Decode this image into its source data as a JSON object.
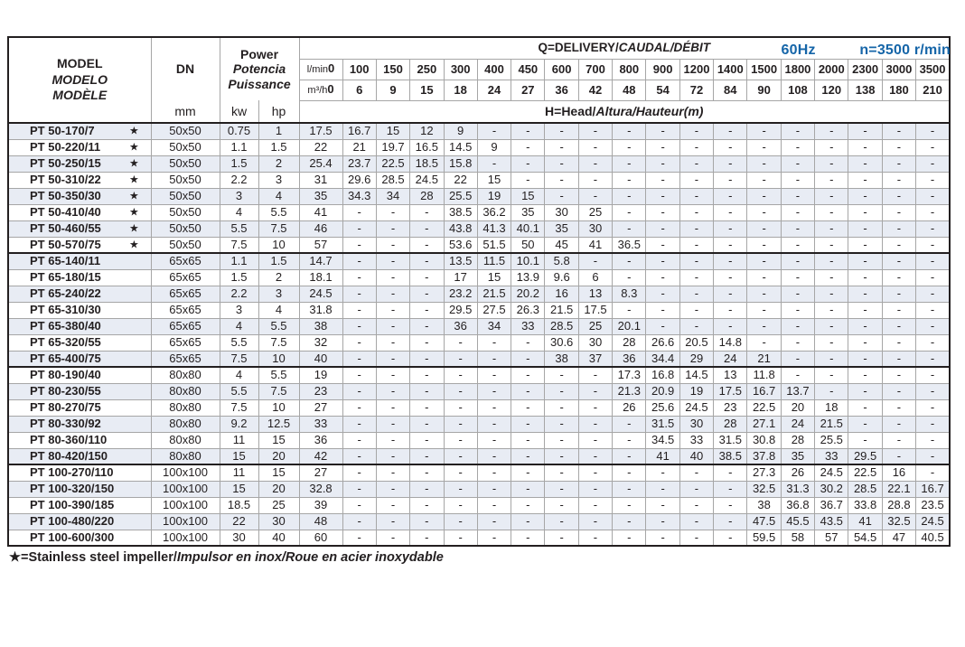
{
  "page": {
    "frequency": "60Hz",
    "speed": "n=3500 r/min",
    "footnote_star": "★",
    "footnote_plain": "=Stainless steel impeller/",
    "footnote_italic": "Impulsor en inox/Roue en acier inoxydable"
  },
  "colors": {
    "accent_blue": "#1565a8",
    "row_stripe": "#e8ecf4",
    "grid_line": "#a6a6a6",
    "heavy_line": "#231f20"
  },
  "table": {
    "headers": {
      "model": [
        "MODEL",
        "MODELO",
        "MODÈLE"
      ],
      "dn": "DN",
      "dn_unit": "mm",
      "power": [
        "Power",
        "Potencia",
        "Puissance"
      ],
      "kw": "kw",
      "hp": "hp",
      "q_title_plain": "Q=DELIVERY/",
      "q_title_italic": "CAUDAL/DÉBIT",
      "lmin_label": "l/min",
      "m3h_label": "m³/h",
      "lmin_values": [
        "0",
        "100",
        "150",
        "250",
        "300",
        "400",
        "450",
        "600",
        "700",
        "800",
        "900",
        "1200",
        "1400",
        "1500",
        "1800",
        "2000",
        "2300",
        "3000",
        "3500"
      ],
      "m3h_values": [
        "0",
        "6",
        "9",
        "15",
        "18",
        "24",
        "27",
        "36",
        "42",
        "48",
        "54",
        "72",
        "84",
        "90",
        "108",
        "120",
        "138",
        "180",
        "210"
      ],
      "head_title_plain": "H=Head/",
      "head_title_italic": "Altura/Hauteur(m)"
    },
    "rows": [
      {
        "model": "PT 50-170/7",
        "star": true,
        "dn": "50x50",
        "kw": "0.75",
        "hp": "1",
        "head": [
          "17.5",
          "16.7",
          "15",
          "12",
          "9",
          "-",
          "-",
          "-",
          "-",
          "-",
          "-",
          "-",
          "-",
          "-",
          "-",
          "-",
          "-",
          "-",
          "-"
        ]
      },
      {
        "model": "PT 50-220/11",
        "star": true,
        "dn": "50x50",
        "kw": "1.1",
        "hp": "1.5",
        "head": [
          "22",
          "21",
          "19.7",
          "16.5",
          "14.5",
          "9",
          "-",
          "-",
          "-",
          "-",
          "-",
          "-",
          "-",
          "-",
          "-",
          "-",
          "-",
          "-",
          "-"
        ]
      },
      {
        "model": "PT 50-250/15",
        "star": true,
        "dn": "50x50",
        "kw": "1.5",
        "hp": "2",
        "head": [
          "25.4",
          "23.7",
          "22.5",
          "18.5",
          "15.8",
          "-",
          "-",
          "-",
          "-",
          "-",
          "-",
          "-",
          "-",
          "-",
          "-",
          "-",
          "-",
          "-",
          "-"
        ]
      },
      {
        "model": "PT 50-310/22",
        "star": true,
        "dn": "50x50",
        "kw": "2.2",
        "hp": "3",
        "head": [
          "31",
          "29.6",
          "28.5",
          "24.5",
          "22",
          "15",
          "-",
          "-",
          "-",
          "-",
          "-",
          "-",
          "-",
          "-",
          "-",
          "-",
          "-",
          "-",
          "-"
        ]
      },
      {
        "model": "PT 50-350/30",
        "star": true,
        "dn": "50x50",
        "kw": "3",
        "hp": "4",
        "head": [
          "35",
          "34.3",
          "34",
          "28",
          "25.5",
          "19",
          "15",
          "-",
          "-",
          "-",
          "-",
          "-",
          "-",
          "-",
          "-",
          "-",
          "-",
          "-",
          "-"
        ]
      },
      {
        "model": "PT 50-410/40",
        "star": true,
        "dn": "50x50",
        "kw": "4",
        "hp": "5.5",
        "head": [
          "41",
          "-",
          "-",
          "-",
          "38.5",
          "36.2",
          "35",
          "30",
          "25",
          "-",
          "-",
          "-",
          "-",
          "-",
          "-",
          "-",
          "-",
          "-",
          "-"
        ]
      },
      {
        "model": "PT 50-460/55",
        "star": true,
        "dn": "50x50",
        "kw": "5.5",
        "hp": "7.5",
        "head": [
          "46",
          "-",
          "-",
          "-",
          "43.8",
          "41.3",
          "40.1",
          "35",
          "30",
          "-",
          "-",
          "-",
          "-",
          "-",
          "-",
          "-",
          "-",
          "-",
          "-"
        ]
      },
      {
        "model": "PT 50-570/75",
        "star": true,
        "dn": "50x50",
        "kw": "7.5",
        "hp": "10",
        "head": [
          "57",
          "-",
          "-",
          "-",
          "53.6",
          "51.5",
          "50",
          "45",
          "41",
          "36.5",
          "-",
          "-",
          "-",
          "-",
          "-",
          "-",
          "-",
          "-",
          "-"
        ]
      },
      {
        "model": "PT 65-140/11",
        "star": false,
        "group_start": true,
        "dn": "65x65",
        "kw": "1.1",
        "hp": "1.5",
        "head": [
          "14.7",
          "-",
          "-",
          "-",
          "13.5",
          "11.5",
          "10.1",
          "5.8",
          "-",
          "-",
          "-",
          "-",
          "-",
          "-",
          "-",
          "-",
          "-",
          "-",
          "-"
        ]
      },
      {
        "model": "PT 65-180/15",
        "star": false,
        "dn": "65x65",
        "kw": "1.5",
        "hp": "2",
        "head": [
          "18.1",
          "-",
          "-",
          "-",
          "17",
          "15",
          "13.9",
          "9.6",
          "6",
          "-",
          "-",
          "-",
          "-",
          "-",
          "-",
          "-",
          "-",
          "-",
          "-"
        ]
      },
      {
        "model": "PT 65-240/22",
        "star": false,
        "dn": "65x65",
        "kw": "2.2",
        "hp": "3",
        "head": [
          "24.5",
          "-",
          "-",
          "-",
          "23.2",
          "21.5",
          "20.2",
          "16",
          "13",
          "8.3",
          "-",
          "-",
          "-",
          "-",
          "-",
          "-",
          "-",
          "-",
          "-"
        ]
      },
      {
        "model": "PT 65-310/30",
        "star": false,
        "dn": "65x65",
        "kw": "3",
        "hp": "4",
        "head": [
          "31.8",
          "-",
          "-",
          "-",
          "29.5",
          "27.5",
          "26.3",
          "21.5",
          "17.5",
          "-",
          "-",
          "-",
          "-",
          "-",
          "-",
          "-",
          "-",
          "-",
          "-"
        ]
      },
      {
        "model": "PT 65-380/40",
        "star": false,
        "dn": "65x65",
        "kw": "4",
        "hp": "5.5",
        "head": [
          "38",
          "-",
          "-",
          "-",
          "36",
          "34",
          "33",
          "28.5",
          "25",
          "20.1",
          "-",
          "-",
          "-",
          "-",
          "-",
          "-",
          "-",
          "-",
          "-"
        ]
      },
      {
        "model": "PT 65-320/55",
        "star": false,
        "dn": "65x65",
        "kw": "5.5",
        "hp": "7.5",
        "head": [
          "32",
          "-",
          "-",
          "-",
          "-",
          "-",
          "-",
          "30.6",
          "30",
          "28",
          "26.6",
          "20.5",
          "14.8",
          "-",
          "-",
          "-",
          "-",
          "-",
          "-"
        ]
      },
      {
        "model": "PT 65-400/75",
        "star": false,
        "dn": "65x65",
        "kw": "7.5",
        "hp": "10",
        "head": [
          "40",
          "-",
          "-",
          "-",
          "-",
          "-",
          "-",
          "38",
          "37",
          "36",
          "34.4",
          "29",
          "24",
          "21",
          "-",
          "-",
          "-",
          "-",
          "-"
        ]
      },
      {
        "model": "PT 80-190/40",
        "star": false,
        "group_start": true,
        "dn": "80x80",
        "kw": "4",
        "hp": "5.5",
        "head": [
          "19",
          "-",
          "-",
          "-",
          "-",
          "-",
          "-",
          "-",
          "-",
          "17.3",
          "16.8",
          "14.5",
          "13",
          "11.8",
          "-",
          "-",
          "-",
          "-",
          "-"
        ]
      },
      {
        "model": "PT 80-230/55",
        "star": false,
        "dn": "80x80",
        "kw": "5.5",
        "hp": "7.5",
        "head": [
          "23",
          "-",
          "-",
          "-",
          "-",
          "-",
          "-",
          "-",
          "-",
          "21.3",
          "20.9",
          "19",
          "17.5",
          "16.7",
          "13.7",
          "-",
          "-",
          "-",
          "-"
        ]
      },
      {
        "model": "PT 80-270/75",
        "star": false,
        "dn": "80x80",
        "kw": "7.5",
        "hp": "10",
        "head": [
          "27",
          "-",
          "-",
          "-",
          "-",
          "-",
          "-",
          "-",
          "-",
          "26",
          "25.6",
          "24.5",
          "23",
          "22.5",
          "20",
          "18",
          "-",
          "-",
          "-"
        ]
      },
      {
        "model": "PT 80-330/92",
        "star": false,
        "dn": "80x80",
        "kw": "9.2",
        "hp": "12.5",
        "head": [
          "33",
          "-",
          "-",
          "-",
          "-",
          "-",
          "-",
          "-",
          "-",
          "-",
          "31.5",
          "30",
          "28",
          "27.1",
          "24",
          "21.5",
          "-",
          "-",
          "-"
        ]
      },
      {
        "model": "PT 80-360/110",
        "star": false,
        "dn": "80x80",
        "kw": "11",
        "hp": "15",
        "head": [
          "36",
          "-",
          "-",
          "-",
          "-",
          "-",
          "-",
          "-",
          "-",
          "-",
          "34.5",
          "33",
          "31.5",
          "30.8",
          "28",
          "25.5",
          "-",
          "-",
          "-"
        ]
      },
      {
        "model": "PT 80-420/150",
        "star": false,
        "dn": "80x80",
        "kw": "15",
        "hp": "20",
        "head": [
          "42",
          "-",
          "-",
          "-",
          "-",
          "-",
          "-",
          "-",
          "-",
          "-",
          "41",
          "40",
          "38.5",
          "37.8",
          "35",
          "33",
          "29.5",
          "-",
          "-"
        ]
      },
      {
        "model": "PT 100-270/110",
        "star": false,
        "group_start": true,
        "dn": "100x100",
        "kw": "11",
        "hp": "15",
        "head": [
          "27",
          "-",
          "-",
          "-",
          "-",
          "-",
          "-",
          "-",
          "-",
          "-",
          "-",
          "-",
          "-",
          "27.3",
          "26",
          "24.5",
          "22.5",
          "16",
          "-"
        ]
      },
      {
        "model": "PT 100-320/150",
        "star": false,
        "dn": "100x100",
        "kw": "15",
        "hp": "20",
        "head": [
          "32.8",
          "-",
          "-",
          "-",
          "-",
          "-",
          "-",
          "-",
          "-",
          "-",
          "-",
          "-",
          "-",
          "32.5",
          "31.3",
          "30.2",
          "28.5",
          "22.1",
          "16.7"
        ]
      },
      {
        "model": "PT 100-390/185",
        "star": false,
        "dn": "100x100",
        "kw": "18.5",
        "hp": "25",
        "head": [
          "39",
          "-",
          "-",
          "-",
          "-",
          "-",
          "-",
          "-",
          "-",
          "-",
          "-",
          "-",
          "-",
          "38",
          "36.8",
          "36.7",
          "33.8",
          "28.8",
          "23.5"
        ]
      },
      {
        "model": "PT 100-480/220",
        "star": false,
        "dn": "100x100",
        "kw": "22",
        "hp": "30",
        "head": [
          "48",
          "-",
          "-",
          "-",
          "-",
          "-",
          "-",
          "-",
          "-",
          "-",
          "-",
          "-",
          "-",
          "47.5",
          "45.5",
          "43.5",
          "41",
          "32.5",
          "24.5"
        ]
      },
      {
        "model": "PT 100-600/300",
        "star": false,
        "dn": "100x100",
        "kw": "30",
        "hp": "40",
        "head": [
          "60",
          "-",
          "-",
          "-",
          "-",
          "-",
          "-",
          "-",
          "-",
          "-",
          "-",
          "-",
          "-",
          "59.5",
          "58",
          "57",
          "54.5",
          "47",
          "40.5"
        ]
      }
    ]
  }
}
